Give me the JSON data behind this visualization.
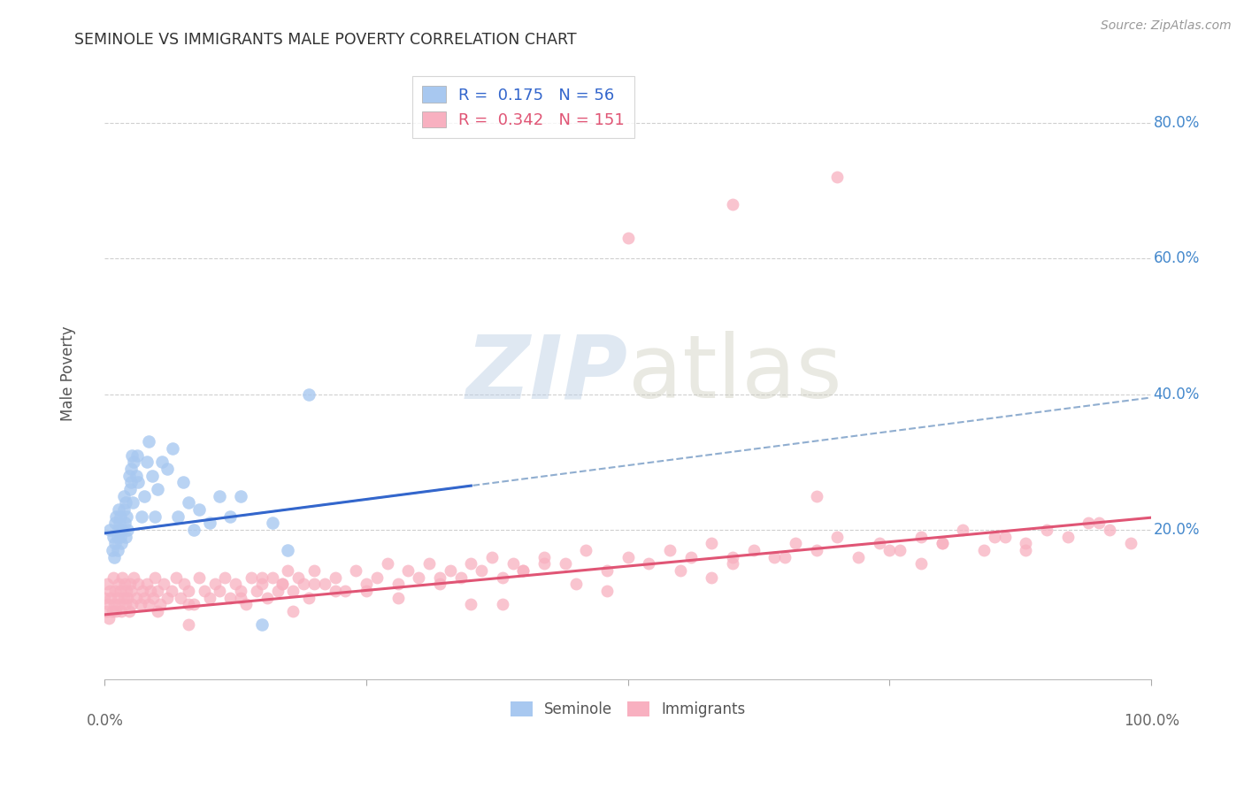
{
  "title": "SEMINOLE VS IMMIGRANTS MALE POVERTY CORRELATION CHART",
  "source": "Source: ZipAtlas.com",
  "ylabel": "Male Poverty",
  "ytick_labels": [
    "20.0%",
    "40.0%",
    "60.0%",
    "80.0%"
  ],
  "ytick_values": [
    0.2,
    0.4,
    0.6,
    0.8
  ],
  "xlim": [
    0.0,
    1.0
  ],
  "ylim": [
    -0.02,
    0.88
  ],
  "seminole_color": "#a8c8f0",
  "immigrants_color": "#f8b0c0",
  "seminole_line_color": "#3366cc",
  "immigrants_line_color": "#e05575",
  "dashed_line_color": "#90aed0",
  "background_color": "#ffffff",
  "grid_color": "#d0d0d0",
  "seminole_line_x0": 0.0,
  "seminole_line_x1": 0.35,
  "seminole_line_y0": 0.195,
  "seminole_line_y1": 0.265,
  "dashed_line_x0": 0.0,
  "dashed_line_x1": 1.0,
  "dashed_line_y0": 0.195,
  "dashed_line_y1": 0.395,
  "immigrants_line_x0": 0.0,
  "immigrants_line_x1": 1.0,
  "immigrants_line_y0": 0.075,
  "immigrants_line_y1": 0.218,
  "seminole_x": [
    0.005,
    0.007,
    0.008,
    0.009,
    0.01,
    0.01,
    0.011,
    0.012,
    0.012,
    0.013,
    0.013,
    0.014,
    0.015,
    0.015,
    0.016,
    0.017,
    0.018,
    0.018,
    0.019,
    0.02,
    0.02,
    0.021,
    0.022,
    0.023,
    0.024,
    0.025,
    0.025,
    0.026,
    0.027,
    0.028,
    0.03,
    0.031,
    0.032,
    0.035,
    0.038,
    0.04,
    0.042,
    0.045,
    0.048,
    0.05,
    0.055,
    0.06,
    0.065,
    0.07,
    0.075,
    0.08,
    0.085,
    0.09,
    0.1,
    0.11,
    0.12,
    0.13,
    0.15,
    0.16,
    0.175,
    0.195
  ],
  "seminole_y": [
    0.2,
    0.17,
    0.19,
    0.16,
    0.21,
    0.18,
    0.22,
    0.19,
    0.17,
    0.2,
    0.23,
    0.21,
    0.19,
    0.22,
    0.18,
    0.2,
    0.23,
    0.25,
    0.21,
    0.19,
    0.24,
    0.22,
    0.2,
    0.28,
    0.26,
    0.29,
    0.27,
    0.31,
    0.24,
    0.3,
    0.28,
    0.31,
    0.27,
    0.22,
    0.25,
    0.3,
    0.33,
    0.28,
    0.22,
    0.26,
    0.3,
    0.29,
    0.32,
    0.22,
    0.27,
    0.24,
    0.2,
    0.23,
    0.21,
    0.25,
    0.22,
    0.25,
    0.06,
    0.21,
    0.17,
    0.4
  ],
  "immigrants_x": [
    0.0,
    0.001,
    0.002,
    0.003,
    0.004,
    0.005,
    0.006,
    0.007,
    0.008,
    0.009,
    0.01,
    0.011,
    0.012,
    0.013,
    0.014,
    0.015,
    0.016,
    0.017,
    0.018,
    0.019,
    0.02,
    0.021,
    0.022,
    0.023,
    0.024,
    0.025,
    0.026,
    0.028,
    0.03,
    0.032,
    0.034,
    0.036,
    0.038,
    0.04,
    0.042,
    0.044,
    0.046,
    0.048,
    0.05,
    0.053,
    0.056,
    0.06,
    0.064,
    0.068,
    0.072,
    0.076,
    0.08,
    0.085,
    0.09,
    0.095,
    0.1,
    0.105,
    0.11,
    0.115,
    0.12,
    0.125,
    0.13,
    0.135,
    0.14,
    0.145,
    0.15,
    0.155,
    0.16,
    0.165,
    0.17,
    0.175,
    0.18,
    0.185,
    0.19,
    0.195,
    0.2,
    0.21,
    0.22,
    0.23,
    0.24,
    0.25,
    0.26,
    0.27,
    0.28,
    0.29,
    0.3,
    0.31,
    0.32,
    0.33,
    0.34,
    0.35,
    0.36,
    0.37,
    0.38,
    0.39,
    0.4,
    0.42,
    0.44,
    0.46,
    0.48,
    0.5,
    0.52,
    0.54,
    0.56,
    0.58,
    0.6,
    0.62,
    0.64,
    0.66,
    0.68,
    0.7,
    0.72,
    0.74,
    0.76,
    0.78,
    0.8,
    0.82,
    0.84,
    0.86,
    0.88,
    0.9,
    0.92,
    0.94,
    0.96,
    0.98,
    0.5,
    0.6,
    0.7,
    0.15,
    0.25,
    0.35,
    0.45,
    0.55,
    0.65,
    0.75,
    0.85,
    0.95,
    0.05,
    0.08,
    0.13,
    0.17,
    0.22,
    0.32,
    0.42,
    0.08,
    0.18,
    0.28,
    0.38,
    0.48,
    0.58,
    0.68,
    0.78,
    0.88,
    0.2,
    0.4,
    0.6,
    0.8
  ],
  "immigrants_y": [
    0.1,
    0.08,
    0.12,
    0.09,
    0.07,
    0.11,
    0.1,
    0.08,
    0.13,
    0.09,
    0.11,
    0.08,
    0.1,
    0.12,
    0.09,
    0.11,
    0.08,
    0.13,
    0.1,
    0.12,
    0.09,
    0.11,
    0.1,
    0.08,
    0.12,
    0.11,
    0.09,
    0.13,
    0.1,
    0.12,
    0.09,
    0.11,
    0.1,
    0.12,
    0.09,
    0.11,
    0.1,
    0.13,
    0.11,
    0.09,
    0.12,
    0.1,
    0.11,
    0.13,
    0.1,
    0.12,
    0.11,
    0.09,
    0.13,
    0.11,
    0.1,
    0.12,
    0.11,
    0.13,
    0.1,
    0.12,
    0.11,
    0.09,
    0.13,
    0.11,
    0.12,
    0.1,
    0.13,
    0.11,
    0.12,
    0.14,
    0.11,
    0.13,
    0.12,
    0.1,
    0.14,
    0.12,
    0.13,
    0.11,
    0.14,
    0.12,
    0.13,
    0.15,
    0.12,
    0.14,
    0.13,
    0.15,
    0.12,
    0.14,
    0.13,
    0.15,
    0.14,
    0.16,
    0.13,
    0.15,
    0.14,
    0.16,
    0.15,
    0.17,
    0.14,
    0.16,
    0.15,
    0.17,
    0.16,
    0.18,
    0.15,
    0.17,
    0.16,
    0.18,
    0.17,
    0.19,
    0.16,
    0.18,
    0.17,
    0.19,
    0.18,
    0.2,
    0.17,
    0.19,
    0.18,
    0.2,
    0.19,
    0.21,
    0.2,
    0.18,
    0.63,
    0.68,
    0.72,
    0.13,
    0.11,
    0.09,
    0.12,
    0.14,
    0.16,
    0.17,
    0.19,
    0.21,
    0.08,
    0.09,
    0.1,
    0.12,
    0.11,
    0.13,
    0.15,
    0.06,
    0.08,
    0.1,
    0.09,
    0.11,
    0.13,
    0.25,
    0.15,
    0.17,
    0.12,
    0.14,
    0.16,
    0.18
  ]
}
